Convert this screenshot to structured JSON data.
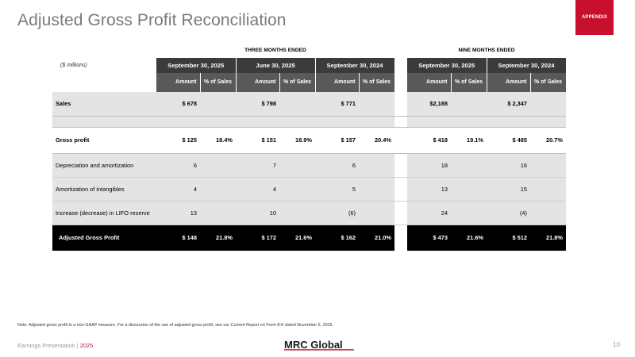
{
  "title": "Adjusted Gross Profit Reconciliation",
  "appendix_tab": "APPENDIX",
  "table": {
    "group_three": "THREE MONTHS ENDED",
    "group_nine": "NINE MONTHS ENDED",
    "units": "($ millions)",
    "periods": [
      "September 30, 2025",
      "June 30, 2025",
      "September 30, 2024",
      "September 30, 2025",
      "September 30, 2024"
    ],
    "sub_amount": "Amount",
    "sub_pct": "% of Sales",
    "rows": [
      {
        "label": "Sales",
        "cells": [
          "$ 678",
          "",
          "$ 798",
          "",
          "$ 771",
          "",
          "$2,188",
          "",
          "$ 2,347",
          ""
        ]
      },
      {
        "label": "Gross profit",
        "cells": [
          "$ 125",
          "18.4%",
          "$ 151",
          "18.9%",
          "$ 157",
          "20.4%",
          "$ 418",
          "19.1%",
          "$ 485",
          "20.7%"
        ]
      },
      {
        "label": "Depreciation and amortization",
        "cells": [
          "6",
          "",
          "7",
          "",
          "6",
          "",
          "18",
          "",
          "16",
          ""
        ]
      },
      {
        "label": "Amortization of intangibles",
        "cells": [
          "4",
          "",
          "4",
          "",
          "5",
          "",
          "13",
          "",
          "15",
          ""
        ]
      },
      {
        "label": "Increase (decrease) in LIFO reserve",
        "cells": [
          "13",
          "",
          "10",
          "",
          "(6)",
          "",
          "24",
          "",
          "(4)",
          ""
        ]
      },
      {
        "label": "Adjusted Gross Profit",
        "cells": [
          "$ 148",
          "21.8%",
          "$ 172",
          "21.6%",
          "$ 162",
          "21.0%",
          "$ 473",
          "21.6%",
          "$ 512",
          "21.8%"
        ]
      }
    ]
  },
  "note": "Note: Adjusted gross profit is a non-GAAP measure. For a discussion of the use of adjusted gross profit, see our Current Report on Form 8-K dated November 5, 2025.",
  "footer": {
    "left_text": "Earnings Presentation | ",
    "year": "2025",
    "logo_text": "MRC Global",
    "page_number": "10"
  },
  "colors": {
    "brand_red": "#c8102e",
    "header_dark": "#3b3b3b",
    "subheader_gray": "#595959",
    "row_shade": "#e4e4e4"
  }
}
